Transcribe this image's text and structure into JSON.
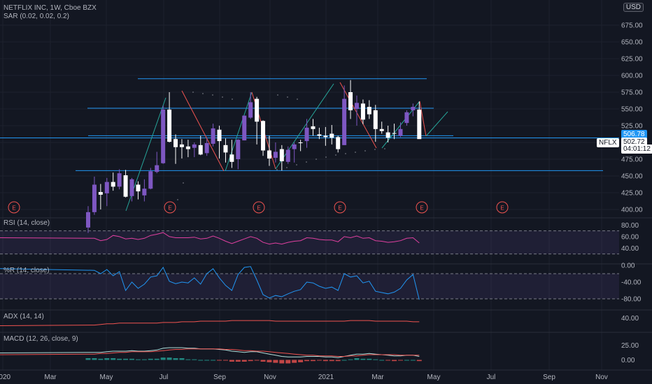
{
  "header": {
    "symbol": "NETFLIX INC, 1W, Cboe BZX",
    "sar": "SAR (0.02, 0.02, 0.2)",
    "rsi": "RSI (14, close)",
    "wr": "%R (14, close)",
    "adx": "ADX (14, 14)",
    "macd": "MACD (12, 26, close, 9)",
    "currency": "USD"
  },
  "tags": {
    "price_blue": "506.78",
    "price_last": "502.72",
    "ticker": "NFLX",
    "countdown": "04:01:12"
  },
  "colors": {
    "up": "#7e57c2",
    "down": "#ffffff",
    "blue_line": "#2196f3",
    "rsi": "#e040a0",
    "wr": "#2196f3",
    "adx": "#ef5350",
    "macd_line": "#26a69a",
    "signal": "#ef5350"
  },
  "chart_data": [
    {
      "type": "candlestick",
      "title": "NETFLIX INC, 1W, Cboe BZX",
      "x": [
        "2020-04-06",
        "2020-04-13",
        "2020-04-20",
        "2020-04-27",
        "2020-05-04",
        "2020-05-11",
        "2020-05-18",
        "2020-05-25",
        "2020-06-01",
        "2020-06-08",
        "2020-06-15",
        "2020-06-22",
        "2020-06-29",
        "2020-07-06",
        "2020-07-13",
        "2020-07-20",
        "2020-07-27",
        "2020-08-03",
        "2020-08-10",
        "2020-08-17",
        "2020-08-24",
        "2020-08-31",
        "2020-09-07",
        "2020-09-14",
        "2020-09-21",
        "2020-09-28",
        "2020-10-05",
        "2020-10-12",
        "2020-10-19",
        "2020-10-26",
        "2020-11-02",
        "2020-11-09",
        "2020-11-16",
        "2020-11-23",
        "2020-11-30",
        "2020-12-07",
        "2020-12-14",
        "2020-12-21",
        "2020-12-28",
        "2021-01-04",
        "2021-01-11",
        "2021-01-18",
        "2021-01-25",
        "2021-02-01",
        "2021-02-08",
        "2021-02-15",
        "2021-02-22",
        "2021-03-01",
        "2021-03-08",
        "2021-03-15",
        "2021-03-22",
        "2021-03-29",
        "2021-04-05",
        "2021-04-12"
      ],
      "ohlc": [
        [
          373,
          405,
          365,
          396
        ],
        [
          396,
          449,
          392,
          437
        ],
        [
          426,
          438,
          400,
          422
        ],
        [
          424,
          447,
          405,
          441
        ],
        [
          441,
          455,
          428,
          434
        ],
        [
          434,
          460,
          430,
          454
        ],
        [
          451,
          459,
          418,
          419
        ],
        [
          420,
          447,
          412,
          445
        ],
        [
          437,
          442,
          415,
          427
        ],
        [
          421,
          445,
          412,
          431
        ],
        [
          431,
          462,
          430,
          457
        ],
        [
          456,
          486,
          454,
          466
        ],
        [
          469,
          555,
          468,
          549
        ],
        [
          549,
          575,
          500,
          501
        ],
        [
          505,
          512,
          468,
          493
        ],
        [
          497,
          505,
          476,
          493
        ],
        [
          494,
          504,
          478,
          490
        ],
        [
          492,
          500,
          478,
          497
        ],
        [
          496,
          510,
          481,
          482
        ],
        [
          484,
          505,
          480,
          499
        ],
        [
          498,
          528,
          494,
          521
        ],
        [
          519,
          525,
          476,
          502
        ],
        [
          496,
          506,
          470,
          485
        ],
        [
          482,
          504,
          462,
          471
        ],
        [
          475,
          505,
          460,
          504
        ],
        [
          503,
          540,
          503,
          540
        ],
        [
          537,
          575,
          535,
          560
        ],
        [
          565,
          568,
          497,
          531
        ],
        [
          532,
          533,
          480,
          488
        ],
        [
          488,
          510,
          465,
          476
        ],
        [
          477,
          500,
          470,
          486
        ],
        [
          490,
          496,
          458,
          472
        ],
        [
          471,
          494,
          468,
          489
        ],
        [
          490,
          500,
          470,
          497
        ],
        [
          500,
          504,
          487,
          499
        ],
        [
          502,
          535,
          492,
          522
        ],
        [
          524,
          535,
          510,
          520
        ],
        [
          512,
          522,
          505,
          510
        ],
        [
          510,
          523,
          495,
          508
        ],
        [
          513,
          526,
          497,
          507
        ],
        [
          508,
          510,
          485,
          490
        ],
        [
          496,
          585,
          496,
          565
        ],
        [
          575,
          593,
          535,
          548
        ],
        [
          550,
          570,
          525,
          559
        ],
        [
          558,
          564,
          527,
          534
        ],
        [
          553,
          563,
          535,
          542
        ],
        [
          548,
          556,
          501,
          520
        ],
        [
          520,
          531,
          513,
          517
        ],
        [
          515,
          525,
          500,
          507
        ],
        [
          514,
          528,
          505,
          513
        ],
        [
          510,
          530,
          508,
          520
        ],
        [
          529,
          548,
          525,
          545
        ],
        [
          548,
          558,
          539,
          553
        ],
        [
          549,
          561,
          506,
          505
        ]
      ],
      "ylim": [
        395,
        700
      ],
      "yticks": [
        400,
        425,
        450,
        475,
        500,
        525,
        550,
        575,
        600,
        625,
        650,
        675
      ],
      "earnings_marker": "E",
      "xlabels": [
        "2020",
        "Mar",
        "May",
        "Jul",
        "Sep",
        "Nov",
        "2021",
        "Mar",
        "May",
        "Jul",
        "Sep",
        "Nov"
      ]
    },
    {
      "type": "line",
      "name": "RSI (14, close)",
      "ylim": [
        20,
        90
      ],
      "bands": [
        70,
        30
      ],
      "yticks": [
        40,
        60,
        80
      ],
      "values": [
        58,
        57,
        53,
        55,
        62,
        60,
        56,
        57,
        55,
        57,
        62,
        64,
        67,
        60,
        58,
        58,
        58,
        59,
        56,
        57,
        61,
        57,
        52,
        48,
        52,
        56,
        60,
        57,
        50,
        47,
        49,
        47,
        50,
        52,
        53,
        58,
        57,
        55,
        54,
        54,
        51,
        60,
        58,
        61,
        57,
        58,
        53,
        52,
        50,
        51,
        53,
        57,
        58,
        49
      ]
    },
    {
      "type": "line",
      "name": "%R (14, close)",
      "ylim": [
        -100,
        0
      ],
      "bands": [
        -20,
        -80
      ],
      "yticks": [
        -80,
        -40,
        0
      ],
      "values": [
        -8,
        -12,
        -20,
        -10,
        -25,
        -15,
        -60,
        -40,
        -55,
        -45,
        -28,
        -25,
        -5,
        -38,
        -44,
        -40,
        -42,
        -30,
        -45,
        -20,
        -8,
        -30,
        -48,
        -60,
        -22,
        -5,
        -3,
        -35,
        -70,
        -78,
        -72,
        -75,
        -68,
        -62,
        -58,
        -40,
        -42,
        -50,
        -55,
        -52,
        -60,
        -20,
        -28,
        -25,
        -42,
        -38,
        -62,
        -65,
        -68,
        -64,
        -55,
        -35,
        -22,
        -82
      ]
    },
    {
      "type": "line",
      "name": "ADX (14, 14)",
      "ylim": [
        20,
        50
      ],
      "yticks": [
        40
      ],
      "values": [
        28,
        29,
        30,
        31,
        31,
        32,
        32,
        32,
        32,
        32,
        32,
        32,
        33,
        33,
        33,
        34,
        34,
        34,
        35,
        35,
        35,
        35,
        35,
        36,
        36,
        36,
        36,
        36,
        36,
        36,
        35,
        35,
        35,
        35,
        35,
        35,
        35,
        35,
        35,
        35,
        35,
        35,
        36,
        36,
        36,
        36,
        35,
        35,
        35,
        35,
        35,
        35,
        34,
        34
      ]
    },
    {
      "type": "line+bar",
      "name": "MACD (12, 26, close, 9)",
      "ylim": [
        -15,
        45
      ],
      "yticks": [
        0,
        25
      ],
      "macd": [
        12,
        13,
        13,
        14,
        15,
        15,
        15,
        16,
        15,
        15,
        16,
        17,
        20,
        21,
        21,
        21,
        20,
        20,
        19,
        19,
        19,
        18,
        17,
        15,
        14,
        13,
        14,
        14,
        12,
        10,
        8,
        6,
        5,
        5,
        5,
        6,
        6,
        6,
        5,
        5,
        4,
        6,
        8,
        10,
        10,
        11,
        10,
        9,
        8,
        7,
        7,
        8,
        8,
        6
      ],
      "signal": [
        9,
        10,
        11,
        11,
        12,
        13,
        13,
        14,
        14,
        14,
        14,
        15,
        16,
        17,
        18,
        18,
        19,
        19,
        19,
        19,
        19,
        19,
        18,
        18,
        17,
        16,
        16,
        15,
        15,
        14,
        13,
        12,
        11,
        10,
        9,
        8,
        8,
        7,
        7,
        7,
        6,
        6,
        7,
        7,
        8,
        9,
        9,
        9,
        9,
        9,
        8,
        8,
        8,
        8
      ],
      "histogram": [
        3,
        3,
        2,
        3,
        3,
        2,
        2,
        2,
        1,
        1,
        2,
        2,
        4,
        4,
        3,
        3,
        1,
        1,
        0,
        0,
        0,
        -1,
        -1,
        -3,
        -3,
        -3,
        -2,
        -1,
        -3,
        -4,
        -5,
        -6,
        -6,
        -5,
        -4,
        -2,
        -2,
        -1,
        -2,
        -2,
        -2,
        0,
        1,
        3,
        2,
        2,
        1,
        0,
        -1,
        -2,
        -1,
        0,
        0,
        -2
      ]
    }
  ]
}
